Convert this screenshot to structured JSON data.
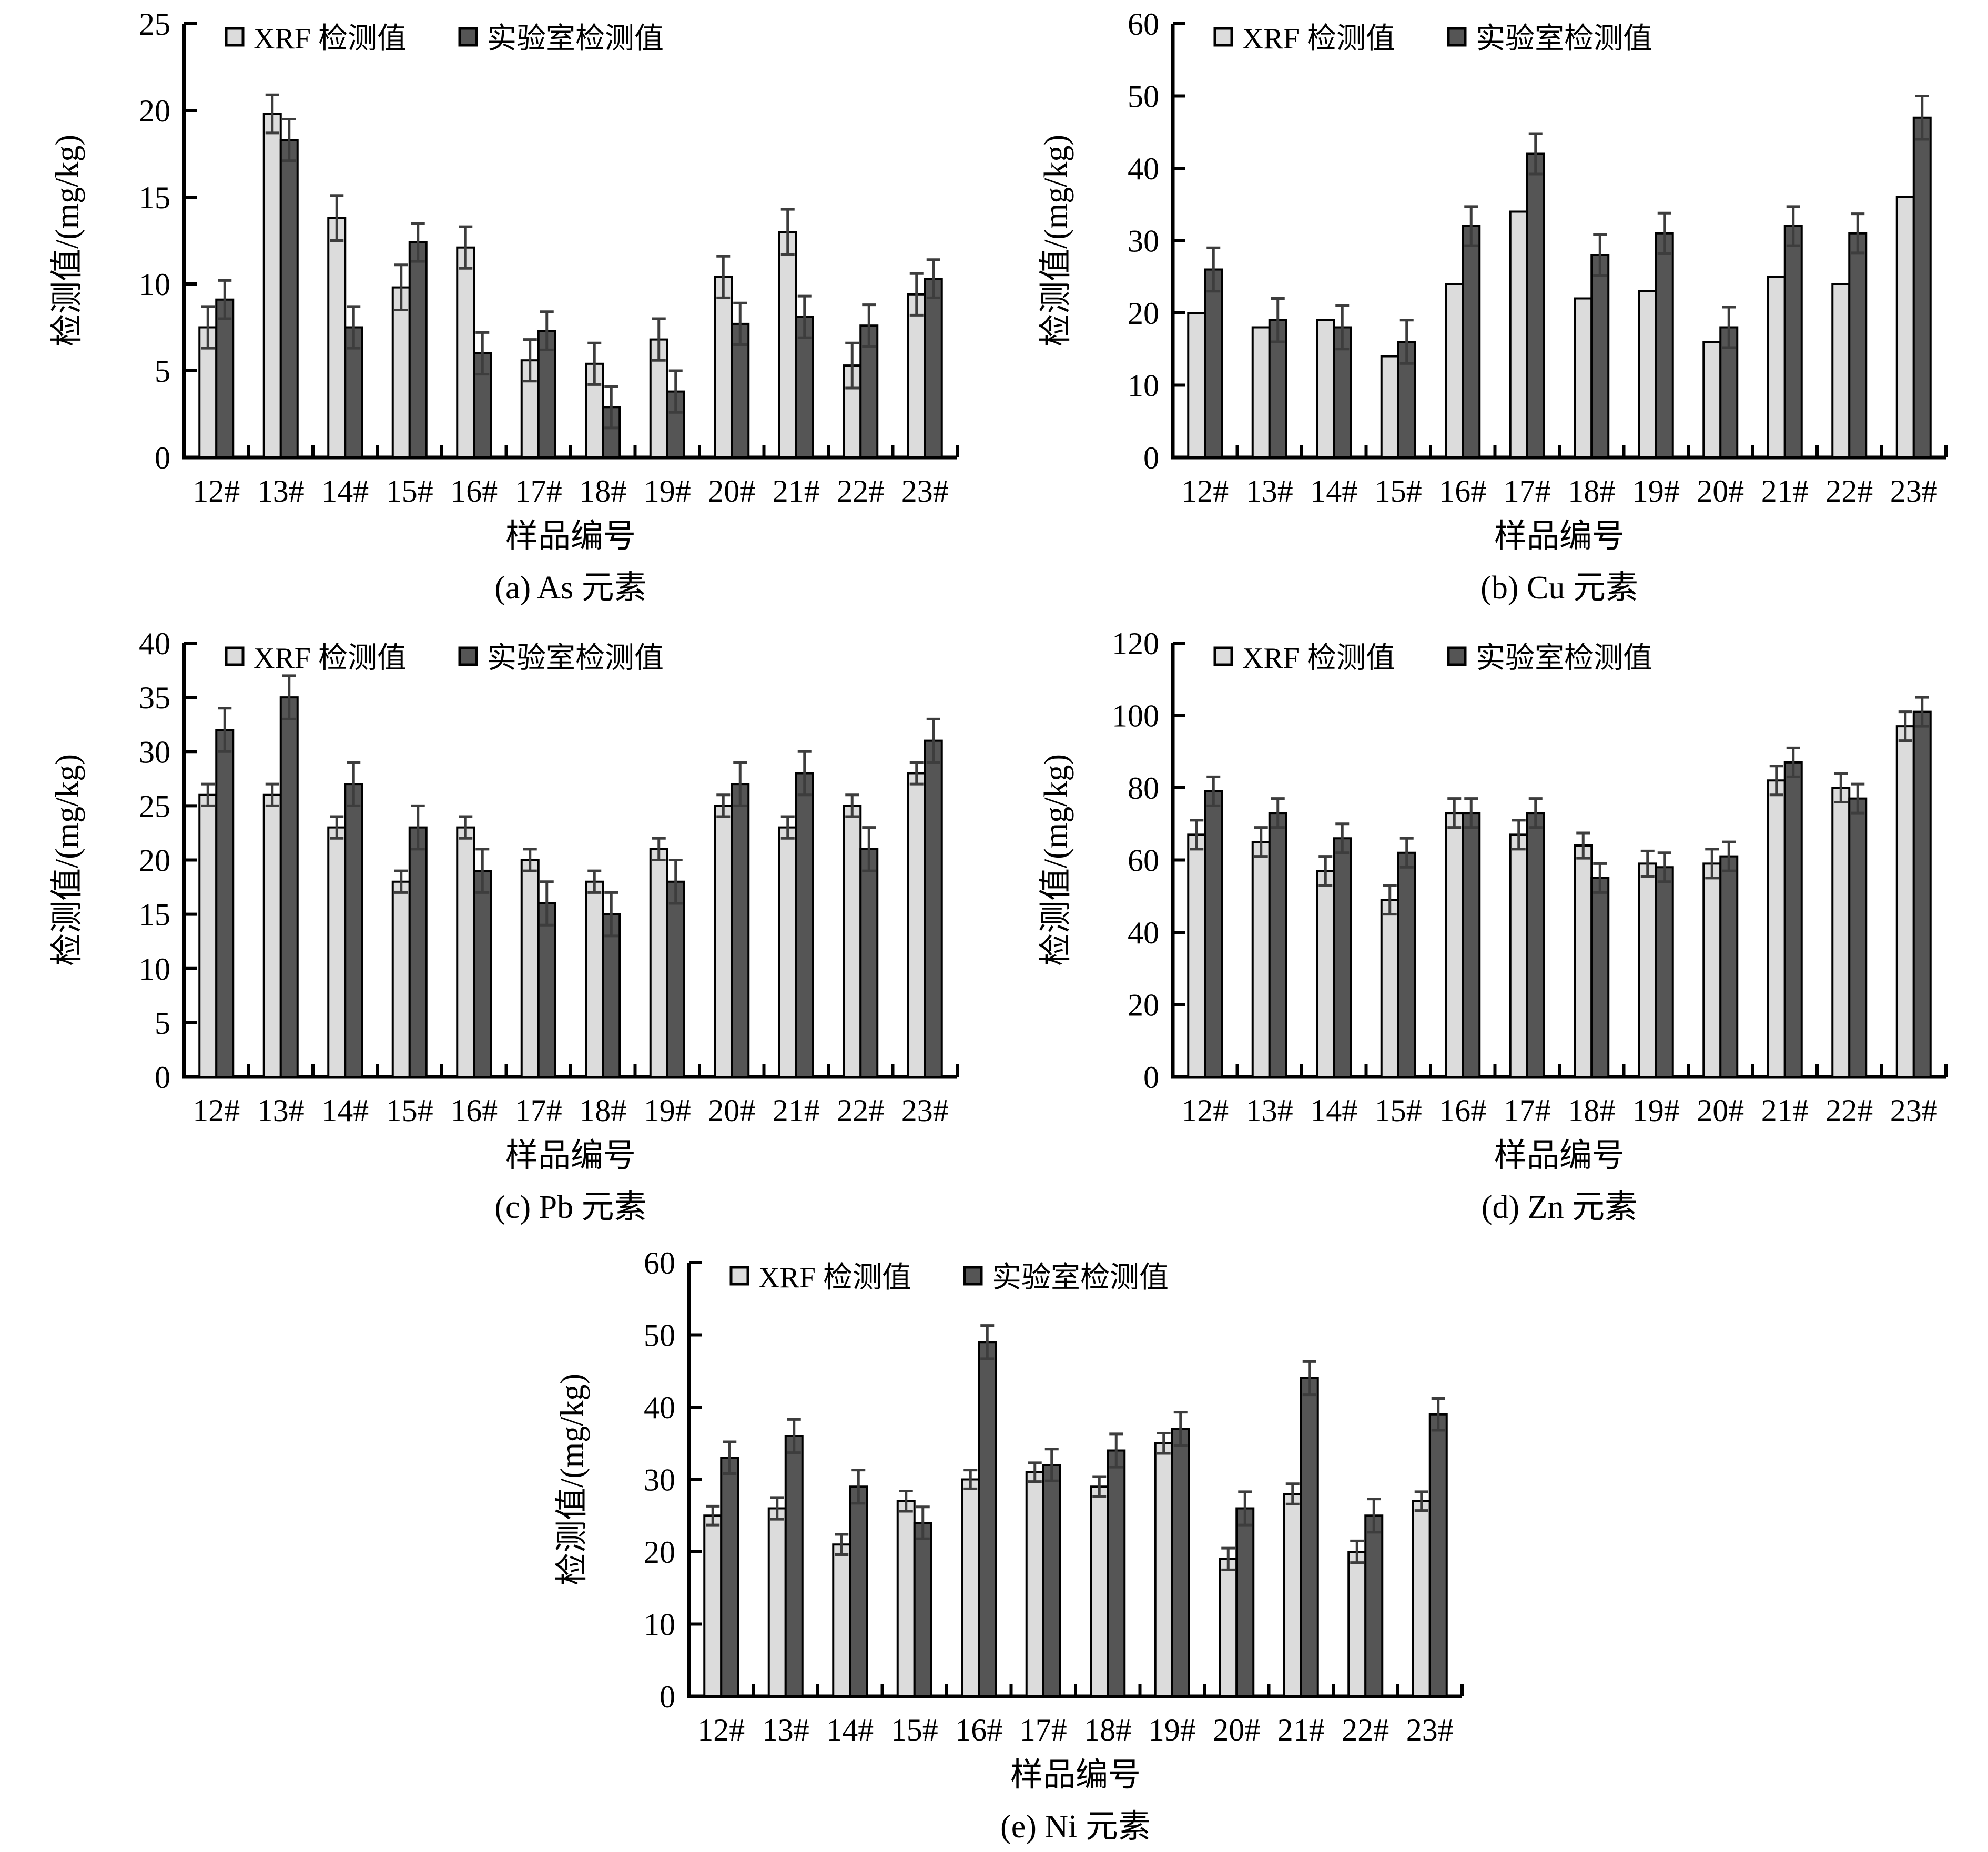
{
  "figure": {
    "xlabel": "样品编号",
    "ylabel": "检测值/(mg/kg)",
    "legend_labels": [
      "XRF 检测值",
      "实验室检测值"
    ]
  },
  "colors": {
    "xrf_fill": "#dcdcdc",
    "lab_fill": "#555555",
    "bar_stroke": "#000000",
    "error_bar": "#3d3d3d",
    "axis": "#000000",
    "text": "#000000",
    "background": "#ffffff"
  },
  "chart_data": [
    {
      "type": "bar",
      "panel": "a",
      "title": "(a) As 元素",
      "element": "As",
      "xlabel": "样品编号",
      "ylabel": "检测值/(mg/kg)",
      "categories": [
        "12#",
        "13#",
        "14#",
        "15#",
        "16#",
        "17#",
        "18#",
        "19#",
        "20#",
        "21#",
        "22#",
        "23#"
      ],
      "ylim": [
        0,
        25
      ],
      "ytick_step": 5,
      "grid": false,
      "legend_position": "top-left-inside",
      "series": [
        {
          "name": "XRF 检测值",
          "role": "xrf",
          "values": [
            7.5,
            19.8,
            13.8,
            9.8,
            12.1,
            5.6,
            5.4,
            6.8,
            10.4,
            13.0,
            5.3,
            9.4
          ],
          "errors": [
            1.2,
            1.1,
            1.3,
            1.3,
            1.2,
            1.2,
            1.2,
            1.2,
            1.2,
            1.3,
            1.3,
            1.2
          ]
        },
        {
          "name": "实验室检测值",
          "role": "lab",
          "values": [
            9.1,
            18.3,
            7.5,
            12.4,
            6.0,
            7.3,
            2.9,
            3.8,
            7.7,
            8.1,
            7.6,
            10.3
          ],
          "errors": [
            1.1,
            1.2,
            1.2,
            1.1,
            1.2,
            1.1,
            1.2,
            1.2,
            1.2,
            1.2,
            1.2,
            1.1
          ]
        }
      ]
    },
    {
      "type": "bar",
      "panel": "b",
      "title": "(b) Cu 元素",
      "element": "Cu",
      "xlabel": "样品编号",
      "ylabel": "检测值/(mg/kg)",
      "categories": [
        "12#",
        "13#",
        "14#",
        "15#",
        "16#",
        "17#",
        "18#",
        "19#",
        "20#",
        "21#",
        "22#",
        "23#"
      ],
      "ylim": [
        0,
        60
      ],
      "ytick_step": 10,
      "grid": false,
      "legend_position": "top-left-inside",
      "series": [
        {
          "name": "XRF 检测值",
          "role": "xrf",
          "values": [
            20,
            18,
            19,
            14,
            24,
            34,
            22,
            23,
            16,
            25,
            24,
            36
          ],
          "errors": null
        },
        {
          "name": "实验室检测值",
          "role": "lab",
          "values": [
            26,
            19,
            18,
            16,
            32,
            42,
            28,
            31,
            18,
            32,
            31,
            47
          ],
          "errors": [
            3,
            3,
            3,
            3,
            2.7,
            2.8,
            2.8,
            2.8,
            2.8,
            2.7,
            2.7,
            3
          ]
        }
      ]
    },
    {
      "type": "bar",
      "panel": "c",
      "title": "(c) Pb 元素",
      "element": "Pb",
      "xlabel": "样品编号",
      "ylabel": "检测值/(mg/kg)",
      "categories": [
        "12#",
        "13#",
        "14#",
        "15#",
        "16#",
        "17#",
        "18#",
        "19#",
        "20#",
        "21#",
        "22#",
        "23#"
      ],
      "ylim": [
        0,
        40
      ],
      "ytick_step": 5,
      "grid": false,
      "legend_position": "top-left-inside",
      "series": [
        {
          "name": "XRF 检测值",
          "role": "xrf",
          "values": [
            26,
            26,
            23,
            18,
            23,
            20,
            18,
            21,
            25,
            23,
            25,
            28
          ],
          "errors": [
            1,
            1,
            1,
            1,
            1,
            1,
            1,
            1,
            1,
            1,
            1,
            1
          ]
        },
        {
          "name": "实验室检测值",
          "role": "lab",
          "values": [
            32,
            35,
            27,
            23,
            19,
            16,
            15,
            18,
            27,
            28,
            21,
            31
          ],
          "errors": [
            2,
            2,
            2,
            2,
            2,
            2,
            2,
            2,
            2,
            2,
            2,
            2
          ]
        }
      ]
    },
    {
      "type": "bar",
      "panel": "d",
      "title": "(d) Zn 元素",
      "element": "Zn",
      "xlabel": "样品编号",
      "ylabel": "检测值/(mg/kg)",
      "categories": [
        "12#",
        "13#",
        "14#",
        "15#",
        "16#",
        "17#",
        "18#",
        "19#",
        "20#",
        "21#",
        "22#",
        "23#"
      ],
      "ylim": [
        0,
        120
      ],
      "ytick_step": 20,
      "grid": false,
      "legend_position": "top-left-inside",
      "series": [
        {
          "name": "XRF 检测值",
          "role": "xrf",
          "values": [
            67,
            65,
            57,
            49,
            73,
            67,
            64,
            59,
            59,
            82,
            80,
            97
          ],
          "errors": [
            4,
            4,
            4,
            4,
            4,
            4,
            3.5,
            3.5,
            4,
            4,
            4,
            4
          ]
        },
        {
          "name": "实验室检测值",
          "role": "lab",
          "values": [
            79,
            73,
            66,
            62,
            73,
            73,
            55,
            58,
            61,
            87,
            77,
            101
          ],
          "errors": [
            4,
            4,
            4,
            4,
            4,
            4,
            4,
            4,
            4,
            4,
            4,
            4
          ]
        }
      ]
    },
    {
      "type": "bar",
      "panel": "e",
      "title": "(e) Ni 元素",
      "element": "Ni",
      "xlabel": "样品编号",
      "ylabel": "检测值/(mg/kg)",
      "categories": [
        "12#",
        "13#",
        "14#",
        "15#",
        "16#",
        "17#",
        "18#",
        "19#",
        "20#",
        "21#",
        "22#",
        "23#"
      ],
      "ylim": [
        0,
        60
      ],
      "ytick_step": 10,
      "grid": false,
      "legend_position": "top-left-inside",
      "series": [
        {
          "name": "XRF 检测值",
          "role": "xrf",
          "values": [
            25,
            26,
            21,
            27,
            30,
            31,
            29,
            35,
            19,
            28,
            20,
            27
          ],
          "errors": [
            1.3,
            1.5,
            1.4,
            1.4,
            1.3,
            1.3,
            1.4,
            1.4,
            1.5,
            1.4,
            1.5,
            1.3
          ]
        },
        {
          "name": "实验室检测值",
          "role": "lab",
          "values": [
            33,
            36,
            29,
            24,
            49,
            32,
            34,
            37,
            26,
            44,
            25,
            39
          ],
          "errors": [
            2.2,
            2.3,
            2.3,
            2.2,
            2.3,
            2.2,
            2.3,
            2.3,
            2.3,
            2.3,
            2.3,
            2.2
          ]
        }
      ]
    }
  ]
}
